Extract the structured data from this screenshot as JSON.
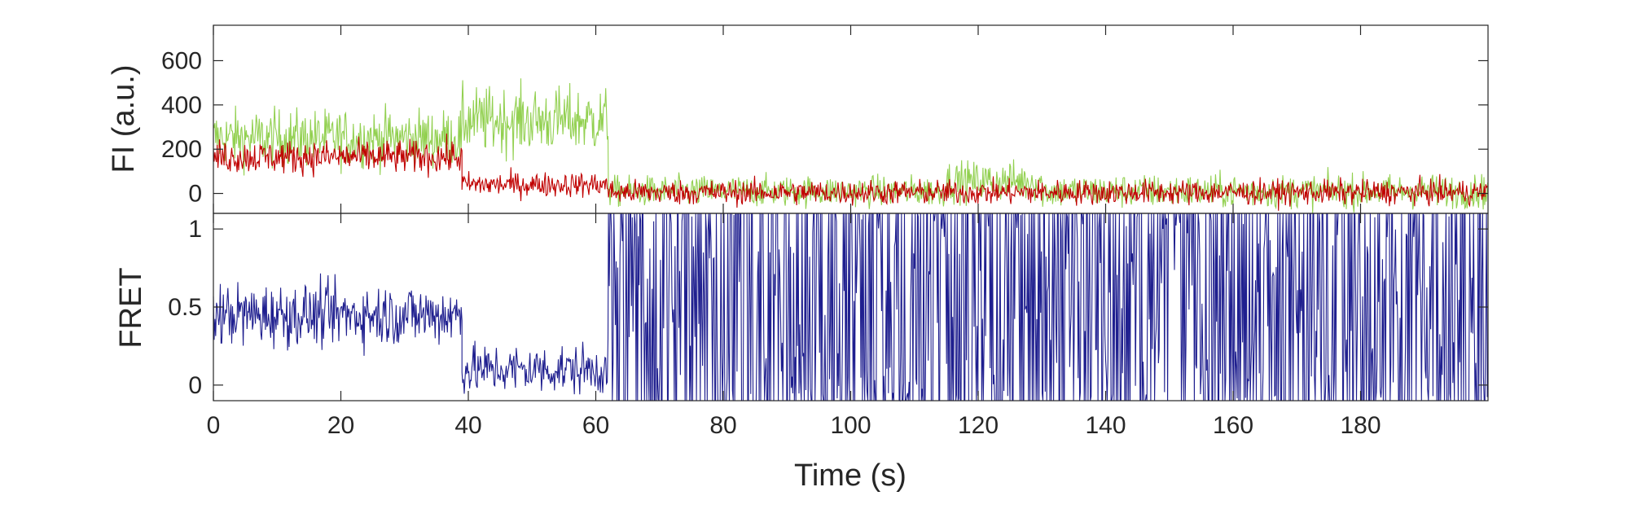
{
  "chart_data": [
    {
      "type": "line",
      "title": "",
      "xlabel": "",
      "ylabel": "FI (a.u.)",
      "xlim": [
        0,
        200
      ],
      "ylim": [
        -90,
        760
      ],
      "yticks": [
        0,
        200,
        400,
        600
      ],
      "grid": false,
      "legend": "none",
      "series": [
        {
          "color": "#92d050",
          "segments": [
            {
              "x0": 0,
              "x1": 39,
              "mean": 250,
              "noise": 65
            },
            {
              "x0": 39,
              "x1": 62,
              "mean": 330,
              "noise": 75
            },
            {
              "x0": 62,
              "x1": 115,
              "mean": 10,
              "noise": 35
            },
            {
              "x0": 115,
              "x1": 130,
              "mean": 55,
              "noise": 45
            },
            {
              "x0": 130,
              "x1": 200,
              "mean": 10,
              "noise": 38
            }
          ]
        },
        {
          "color": "#c00000",
          "segments": [
            {
              "x0": 0,
              "x1": 39,
              "mean": 165,
              "noise": 38
            },
            {
              "x0": 39,
              "x1": 62,
              "mean": 40,
              "noise": 28
            },
            {
              "x0": 62,
              "x1": 200,
              "mean": 5,
              "noise": 28
            }
          ]
        }
      ]
    },
    {
      "type": "line",
      "title": "",
      "xlabel": "Time (s)",
      "ylabel": "FRET",
      "xlim": [
        0,
        200
      ],
      "ylim": [
        -0.1,
        1.1
      ],
      "xticks": [
        0,
        20,
        40,
        60,
        80,
        100,
        120,
        140,
        160,
        180
      ],
      "yticks": [
        0,
        0.5,
        1
      ],
      "grid": false,
      "legend": "none",
      "series": [
        {
          "color": "#1f1f8f",
          "segments": [
            {
              "x0": 0,
              "x1": 39,
              "mean": 0.45,
              "noise": 0.1,
              "kind": "noise"
            },
            {
              "x0": 39,
              "x1": 62,
              "mean": 0.1,
              "noise": 0.08,
              "kind": "noise"
            },
            {
              "x0": 62,
              "x1": 200,
              "mean": 0.5,
              "noise": 0.6,
              "kind": "spike"
            }
          ]
        }
      ]
    }
  ]
}
